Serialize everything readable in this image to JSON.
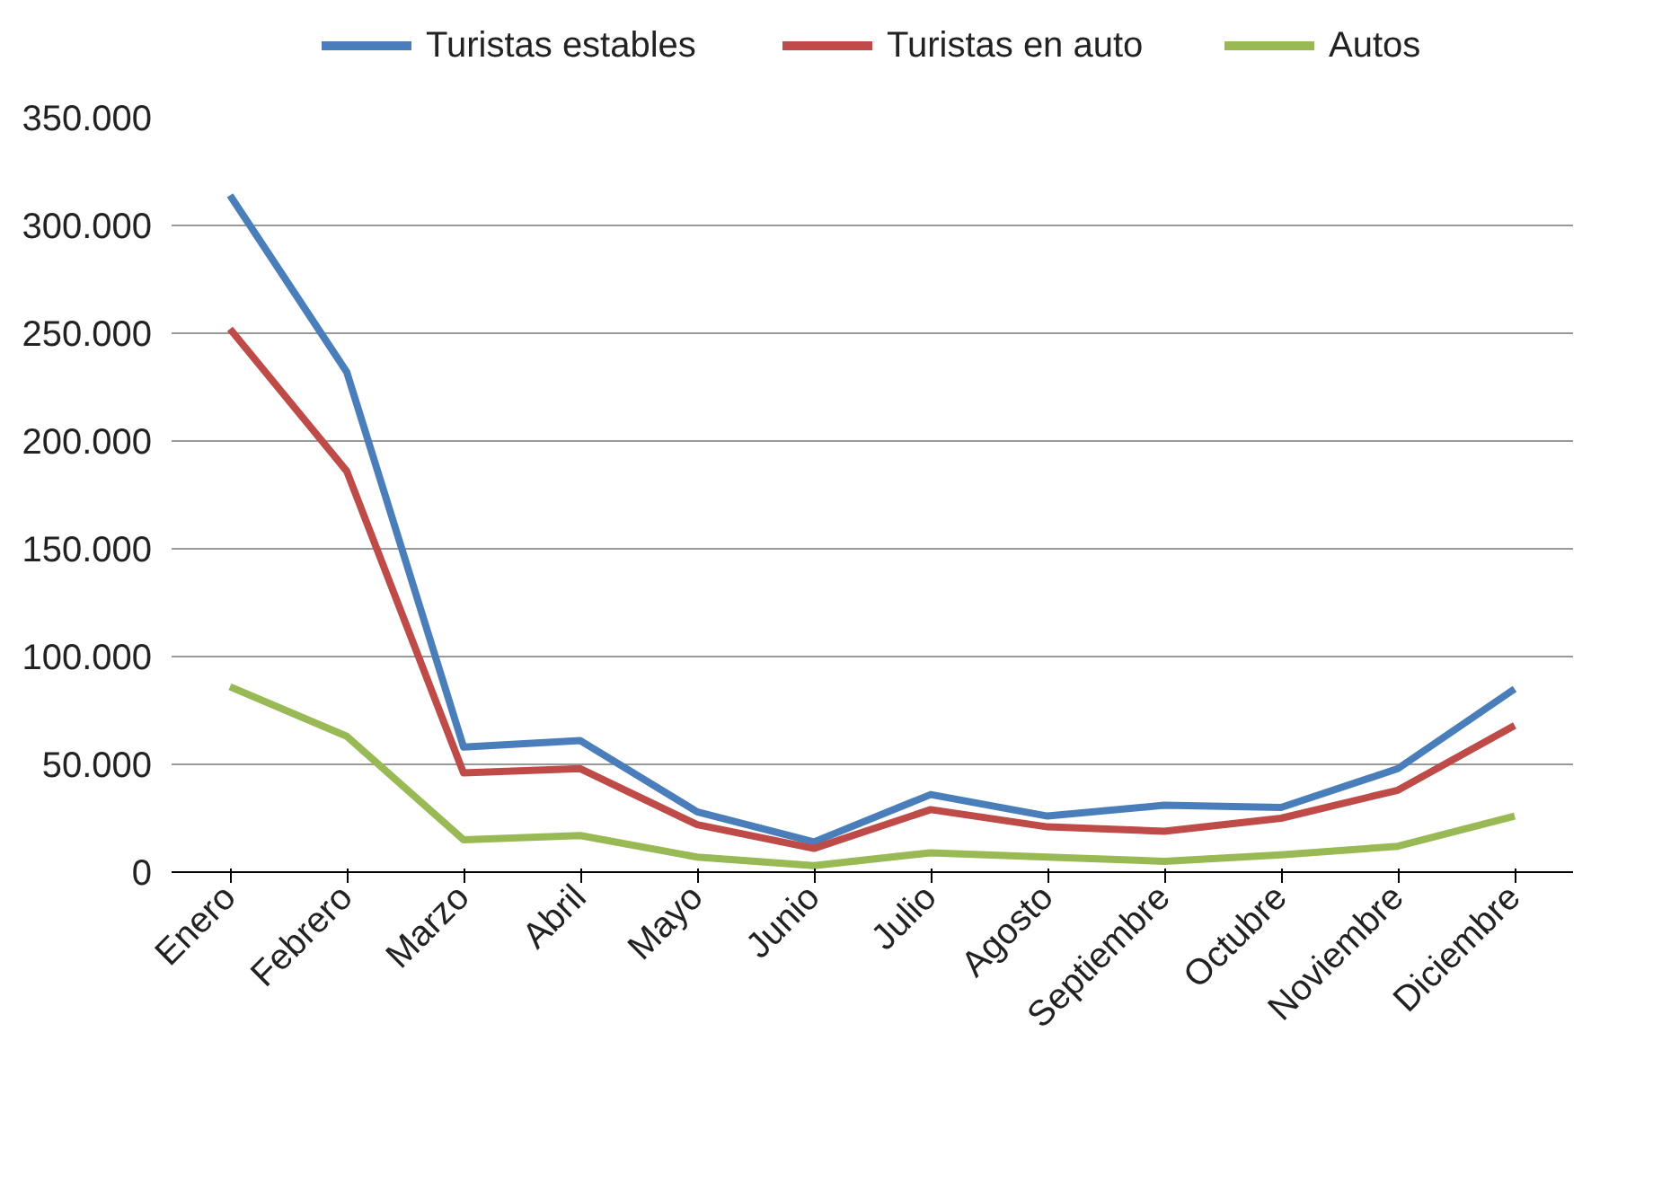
{
  "chart_data": {
    "type": "line",
    "categories": [
      "Enero",
      "Febrero",
      "Marzo",
      "Abril",
      "Mayo",
      "Junio",
      "Julio",
      "Agosto",
      "Septiembre",
      "Octubre",
      "Noviembre",
      "Diciembre"
    ],
    "series": [
      {
        "name": "Turistas estables",
        "color": "#4a7ebb",
        "values": [
          314000,
          232000,
          58000,
          61000,
          28000,
          14000,
          36000,
          26000,
          31000,
          30000,
          48000,
          85000
        ]
      },
      {
        "name": "Turistas en auto",
        "color": "#be4b48",
        "values": [
          252000,
          186000,
          46000,
          48000,
          22000,
          11000,
          29000,
          21000,
          19000,
          25000,
          38000,
          68000
        ]
      },
      {
        "name": "Autos",
        "color": "#98b954",
        "values": [
          86000,
          63000,
          15000,
          17000,
          7000,
          3000,
          9000,
          7000,
          5000,
          8000,
          12000,
          26000
        ]
      }
    ],
    "ylim": [
      0,
      350000
    ],
    "yticks": [
      {
        "value": 0,
        "label": "0"
      },
      {
        "value": 50000,
        "label": "50.000"
      },
      {
        "value": 100000,
        "label": "100.000"
      },
      {
        "value": 150000,
        "label": "150.000"
      },
      {
        "value": 200000,
        "label": "200.000"
      },
      {
        "value": 250000,
        "label": "250.000"
      },
      {
        "value": 300000,
        "label": "300.000"
      },
      {
        "value": 350000,
        "label": "350.000"
      }
    ],
    "grid": "y",
    "legend": "top",
    "marker": "none",
    "line_style": "solid"
  }
}
